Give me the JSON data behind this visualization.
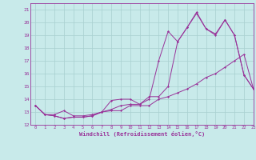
{
  "xlabel": "Windchill (Refroidissement éolien,°C)",
  "xlim": [
    -0.5,
    23
  ],
  "ylim": [
    12,
    21.5
  ],
  "yticks": [
    12,
    13,
    14,
    15,
    16,
    17,
    18,
    19,
    20,
    21
  ],
  "xticks": [
    0,
    1,
    2,
    3,
    4,
    5,
    6,
    7,
    8,
    9,
    10,
    11,
    12,
    13,
    14,
    15,
    16,
    17,
    18,
    19,
    20,
    21,
    22,
    23
  ],
  "bg_color": "#c8eaea",
  "grid_color": "#a8d0d0",
  "line_color": "#993399",
  "series1_x": [
    0,
    1,
    2,
    3,
    4,
    5,
    6,
    7,
    8,
    9,
    10,
    11,
    12,
    13,
    14,
    15,
    16,
    17,
    18,
    19,
    20,
    21,
    22,
    23
  ],
  "series1_y": [
    13.5,
    12.8,
    12.8,
    13.1,
    12.7,
    12.7,
    12.8,
    13.0,
    13.1,
    13.1,
    13.5,
    13.5,
    13.5,
    14.0,
    14.2,
    14.5,
    14.8,
    15.2,
    15.7,
    16.0,
    16.5,
    17.0,
    17.5,
    14.8
  ],
  "series2_x": [
    0,
    1,
    2,
    3,
    4,
    5,
    6,
    7,
    8,
    9,
    10,
    11,
    12,
    13,
    14,
    15,
    16,
    17,
    18,
    19,
    20,
    21,
    22,
    23
  ],
  "series2_y": [
    13.5,
    12.8,
    12.7,
    12.5,
    12.6,
    12.6,
    12.7,
    13.0,
    13.2,
    13.5,
    13.6,
    13.6,
    14.2,
    14.2,
    15.0,
    18.5,
    19.6,
    20.7,
    19.5,
    19.0,
    20.2,
    19.0,
    15.9,
    14.8
  ],
  "series3_x": [
    0,
    1,
    2,
    3,
    4,
    5,
    6,
    7,
    8,
    9,
    10,
    11,
    12,
    13,
    14,
    15,
    16,
    17,
    18,
    19,
    20,
    21,
    22,
    23
  ],
  "series3_y": [
    13.5,
    12.8,
    12.7,
    12.5,
    12.6,
    12.6,
    12.7,
    13.0,
    13.9,
    14.0,
    14.0,
    13.6,
    14.0,
    17.0,
    19.3,
    18.5,
    19.6,
    20.8,
    19.5,
    19.1,
    20.2,
    19.0,
    15.9,
    14.8
  ]
}
